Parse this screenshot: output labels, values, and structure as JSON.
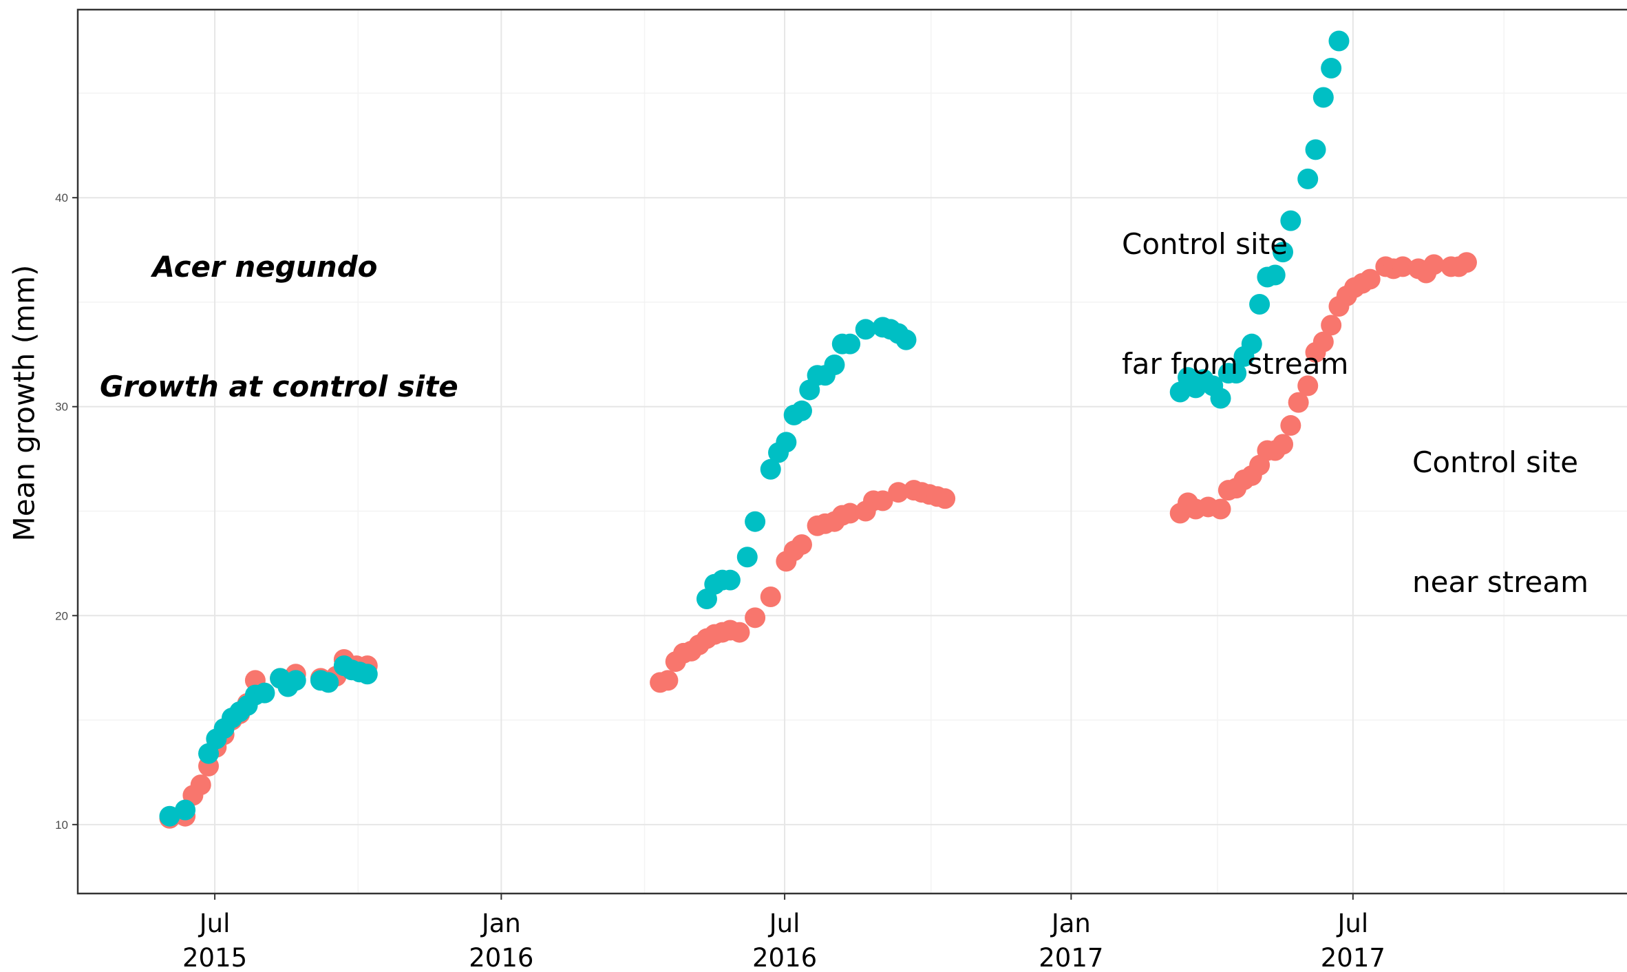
{
  "chart_data": {
    "type": "scatter",
    "title": [
      "Acer negundo",
      "Growth at control site"
    ],
    "ylabel": "Mean growth (mm)",
    "xlabel": "",
    "ylim": [
      6.7,
      49
    ],
    "xlim": [
      "2015-04-04",
      "2017-12-24"
    ],
    "y_ticks": [
      10,
      20,
      30,
      40
    ],
    "x_ticks": [
      {
        "date": "2015-07-01",
        "label": [
          "Jul",
          "2015"
        ]
      },
      {
        "date": "2016-01-01",
        "label": [
          "Jan",
          "2016"
        ]
      },
      {
        "date": "2016-07-01",
        "label": [
          "Jul",
          "2016"
        ]
      },
      {
        "date": "2017-01-01",
        "label": [
          "Jan",
          "2017"
        ]
      },
      {
        "date": "2017-07-01",
        "label": [
          "Jul",
          "2017"
        ]
      }
    ],
    "grid": true,
    "series": [
      {
        "name": "",
        "label_lines": [
          "Control site",
          "near stream"
        ],
        "color": "#f8766d",
        "points": [
          [
            "2015-06-02",
            10.3
          ],
          [
            "2015-06-12",
            10.4
          ],
          [
            "2015-06-17",
            11.4
          ],
          [
            "2015-06-22",
            11.9
          ],
          [
            "2015-06-27",
            12.8
          ],
          [
            "2015-07-02",
            13.7
          ],
          [
            "2015-07-07",
            14.3
          ],
          [
            "2015-07-12",
            15.0
          ],
          [
            "2015-07-17",
            15.3
          ],
          [
            "2015-07-22",
            15.8
          ],
          [
            "2015-07-27",
            16.9
          ],
          [
            "2015-08-12",
            17.0
          ],
          [
            "2015-08-22",
            17.2
          ],
          [
            "2015-09-07",
            17.0
          ],
          [
            "2015-09-17",
            17.1
          ],
          [
            "2015-09-22",
            17.9
          ],
          [
            "2015-09-30",
            17.6
          ],
          [
            "2015-10-07",
            17.6
          ],
          [
            "2016-04-12",
            16.8
          ],
          [
            "2016-04-17",
            16.9
          ],
          [
            "2016-04-22",
            17.8
          ],
          [
            "2016-04-27",
            18.2
          ],
          [
            "2016-05-02",
            18.3
          ],
          [
            "2016-05-07",
            18.6
          ],
          [
            "2016-05-12",
            18.9
          ],
          [
            "2016-05-17",
            19.1
          ],
          [
            "2016-05-22",
            19.2
          ],
          [
            "2016-05-27",
            19.3
          ],
          [
            "2016-06-02",
            19.2
          ],
          [
            "2016-06-12",
            19.9
          ],
          [
            "2016-06-22",
            20.9
          ],
          [
            "2016-07-02",
            22.6
          ],
          [
            "2016-07-07",
            23.1
          ],
          [
            "2016-07-12",
            23.4
          ],
          [
            "2016-07-22",
            24.3
          ],
          [
            "2016-07-27",
            24.4
          ],
          [
            "2016-08-02",
            24.5
          ],
          [
            "2016-08-07",
            24.8
          ],
          [
            "2016-08-12",
            24.9
          ],
          [
            "2016-08-22",
            25.0
          ],
          [
            "2016-08-27",
            25.5
          ],
          [
            "2016-09-02",
            25.5
          ],
          [
            "2016-09-12",
            25.9
          ],
          [
            "2016-09-22",
            26.0
          ],
          [
            "2016-09-27",
            25.9
          ],
          [
            "2016-10-02",
            25.8
          ],
          [
            "2016-10-07",
            25.7
          ],
          [
            "2016-10-12",
            25.6
          ],
          [
            "2017-03-12",
            24.9
          ],
          [
            "2017-03-17",
            25.4
          ],
          [
            "2017-03-22",
            25.1
          ],
          [
            "2017-03-30",
            25.2
          ],
          [
            "2017-04-07",
            25.1
          ],
          [
            "2017-04-12",
            26.0
          ],
          [
            "2017-04-17",
            26.1
          ],
          [
            "2017-04-22",
            26.5
          ],
          [
            "2017-04-27",
            26.7
          ],
          [
            "2017-05-02",
            27.2
          ],
          [
            "2017-05-07",
            27.9
          ],
          [
            "2017-05-12",
            27.9
          ],
          [
            "2017-05-17",
            28.2
          ],
          [
            "2017-05-22",
            29.1
          ],
          [
            "2017-05-27",
            30.2
          ],
          [
            "2017-06-02",
            31.0
          ],
          [
            "2017-06-07",
            32.6
          ],
          [
            "2017-06-12",
            33.1
          ],
          [
            "2017-06-17",
            33.9
          ],
          [
            "2017-06-22",
            34.8
          ],
          [
            "2017-06-27",
            35.3
          ],
          [
            "2017-07-02",
            35.7
          ],
          [
            "2017-07-07",
            35.9
          ],
          [
            "2017-07-12",
            36.1
          ],
          [
            "2017-07-22",
            36.7
          ],
          [
            "2017-07-27",
            36.6
          ],
          [
            "2017-08-02",
            36.7
          ],
          [
            "2017-08-12",
            36.6
          ],
          [
            "2017-08-17",
            36.4
          ],
          [
            "2017-08-22",
            36.8
          ],
          [
            "2017-09-02",
            36.7
          ],
          [
            "2017-09-07",
            36.7
          ],
          [
            "2017-09-12",
            36.9
          ]
        ]
      },
      {
        "name": "",
        "label_lines": [
          "Control site",
          "far from stream"
        ],
        "color": "#00bfc4",
        "points": [
          [
            "2015-06-02",
            10.4
          ],
          [
            "2015-06-12",
            10.7
          ],
          [
            "2015-06-27",
            13.4
          ],
          [
            "2015-07-02",
            14.1
          ],
          [
            "2015-07-07",
            14.6
          ],
          [
            "2015-07-12",
            15.1
          ],
          [
            "2015-07-17",
            15.4
          ],
          [
            "2015-07-22",
            15.7
          ],
          [
            "2015-07-27",
            16.2
          ],
          [
            "2015-08-02",
            16.3
          ],
          [
            "2015-08-12",
            17.0
          ],
          [
            "2015-08-17",
            16.6
          ],
          [
            "2015-08-22",
            16.9
          ],
          [
            "2015-09-07",
            16.9
          ],
          [
            "2015-09-12",
            16.8
          ],
          [
            "2015-09-22",
            17.6
          ],
          [
            "2015-09-27",
            17.4
          ],
          [
            "2015-10-02",
            17.3
          ],
          [
            "2015-10-07",
            17.2
          ],
          [
            "2016-05-12",
            20.8
          ],
          [
            "2016-05-17",
            21.5
          ],
          [
            "2016-05-22",
            21.7
          ],
          [
            "2016-05-27",
            21.7
          ],
          [
            "2016-06-07",
            22.8
          ],
          [
            "2016-06-12",
            24.5
          ],
          [
            "2016-06-22",
            27.0
          ],
          [
            "2016-06-27",
            27.8
          ],
          [
            "2016-07-02",
            28.3
          ],
          [
            "2016-07-07",
            29.6
          ],
          [
            "2016-07-12",
            29.8
          ],
          [
            "2016-07-17",
            30.8
          ],
          [
            "2016-07-22",
            31.5
          ],
          [
            "2016-07-27",
            31.5
          ],
          [
            "2016-08-02",
            32.0
          ],
          [
            "2016-08-07",
            33.0
          ],
          [
            "2016-08-12",
            33.0
          ],
          [
            "2016-08-22",
            33.7
          ],
          [
            "2016-09-02",
            33.8
          ],
          [
            "2016-09-07",
            33.7
          ],
          [
            "2016-09-12",
            33.5
          ],
          [
            "2016-09-17",
            33.2
          ],
          [
            "2017-03-12",
            30.7
          ],
          [
            "2017-03-17",
            31.4
          ],
          [
            "2017-03-22",
            30.9
          ],
          [
            "2017-03-27",
            31.3
          ],
          [
            "2017-04-02",
            31.0
          ],
          [
            "2017-04-07",
            30.4
          ],
          [
            "2017-04-12",
            31.6
          ],
          [
            "2017-04-17",
            31.6
          ],
          [
            "2017-04-22",
            32.4
          ],
          [
            "2017-04-27",
            33.0
          ],
          [
            "2017-05-02",
            34.9
          ],
          [
            "2017-05-07",
            36.2
          ],
          [
            "2017-05-12",
            36.3
          ],
          [
            "2017-05-17",
            37.4
          ],
          [
            "2017-05-22",
            38.9
          ],
          [
            "2017-06-02",
            40.9
          ],
          [
            "2017-06-07",
            42.3
          ],
          [
            "2017-06-12",
            44.8
          ],
          [
            "2017-06-17",
            46.2
          ],
          [
            "2017-06-22",
            47.5
          ]
        ]
      }
    ]
  }
}
